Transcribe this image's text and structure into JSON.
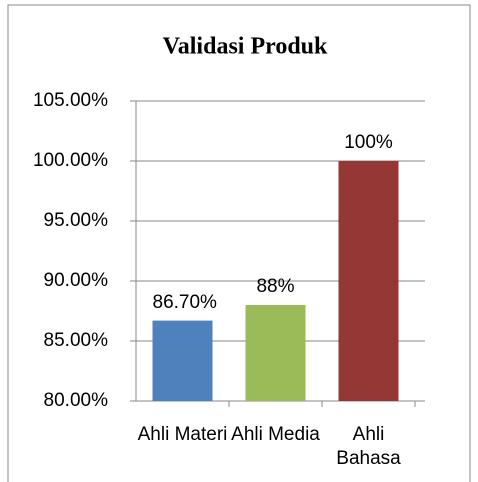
{
  "chart_data": {
    "type": "bar",
    "title": "Validasi Produk",
    "categories": [
      "Ahli Materi",
      "Ahli Media",
      "Ahli Bahasa"
    ],
    "values": [
      86.7,
      88,
      100
    ],
    "value_labels": [
      "86.70%",
      "88%",
      "100%"
    ],
    "colors": [
      "#4f81bd",
      "#9bbb59",
      "#953735"
    ],
    "ylim": [
      80,
      105
    ],
    "yticks": [
      {
        "value": 80,
        "label": "80.00%"
      },
      {
        "value": 85,
        "label": "85.00%"
      },
      {
        "value": 90,
        "label": "90.00%"
      },
      {
        "value": 95,
        "label": "95.00%"
      },
      {
        "value": 100,
        "label": "100.00%"
      },
      {
        "value": 105,
        "label": "105.00%"
      }
    ],
    "grid": true
  }
}
